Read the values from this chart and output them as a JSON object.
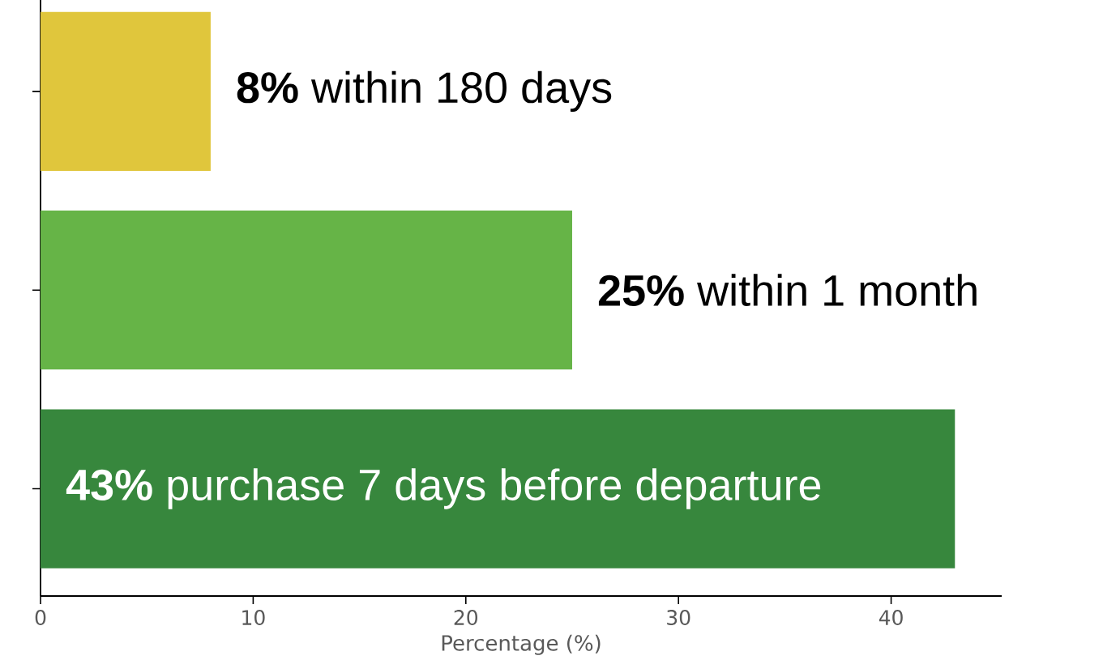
{
  "chart_data": {
    "type": "bar",
    "orientation": "horizontal",
    "categories": [
      null,
      null,
      null
    ],
    "values": [
      8,
      25,
      43
    ],
    "colors": [
      "#e0c63c",
      "#66b447",
      "#37873d"
    ],
    "value_labels": [
      "**8%** within 180 days",
      "**25%** within 1 month",
      "**43%** purchase 7 days before departure"
    ],
    "xlim": [
      0,
      45.2
    ],
    "xticks": [
      0,
      10,
      20,
      30,
      40
    ],
    "xlabel": "Percentage (%)"
  }
}
